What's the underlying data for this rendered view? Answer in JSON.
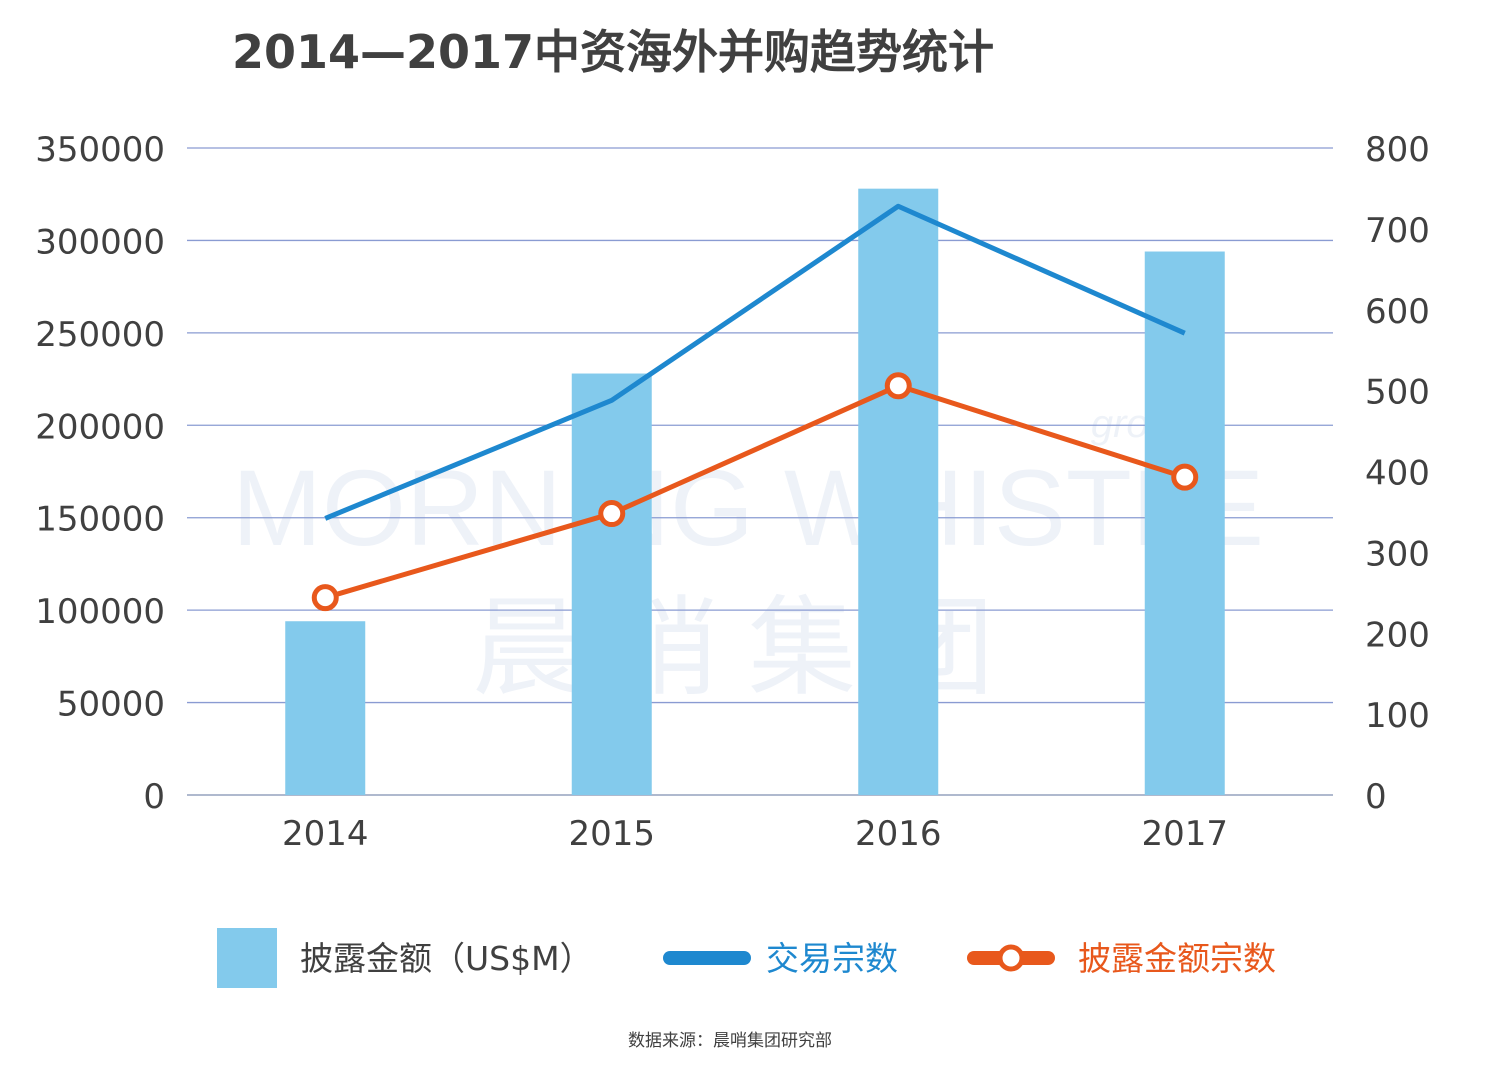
{
  "chart_data": {
    "type": "bar",
    "title": "2014—2017中资海外并购趋势统计",
    "categories": [
      "2014",
      "2015",
      "2016",
      "2017"
    ],
    "series": [
      {
        "name": "披露金额（US$M）",
        "type": "bar",
        "axis": "left",
        "values": [
          94000,
          228000,
          328000,
          294000
        ],
        "color": "#83CAEC"
      },
      {
        "name": "交易宗数",
        "type": "line",
        "axis": "right",
        "values": [
          342,
          488,
          728,
          571
        ],
        "color": "#1E88CF"
      },
      {
        "name": "披露金额宗数",
        "type": "line",
        "axis": "right",
        "marker": "circle",
        "values": [
          244,
          348,
          506,
          393
        ],
        "color": "#E8581C"
      }
    ],
    "ylim_left": [
      0,
      350000
    ],
    "ylim_right": [
      0,
      800
    ],
    "yticks_left": [
      "0",
      "50000",
      "100000",
      "150000",
      "200000",
      "250000",
      "300000",
      "350000"
    ],
    "yticks_right": [
      "0",
      "100",
      "200",
      "300",
      "400",
      "500",
      "600",
      "700",
      "800"
    ],
    "grid": true,
    "legend_position": "bottom"
  },
  "watermark": {
    "text": "MORNING WHISTLE",
    "sub": "group",
    "cn": "晨哨集团"
  },
  "source_note": "数据来源：晨哨集团研究部"
}
